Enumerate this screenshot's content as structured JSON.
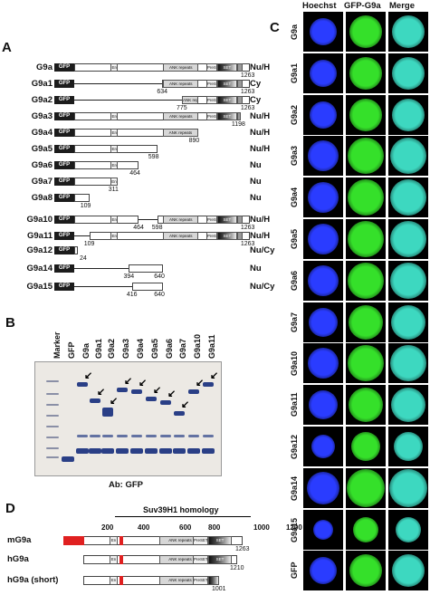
{
  "panels": {
    "a": "A",
    "b": "B",
    "c": "C",
    "d": "D"
  },
  "domain_labels": {
    "gfp": "GFP",
    "en": "En",
    "ank": "ANK repeats",
    "preset": "PreSET",
    "set": "SET"
  },
  "panel_a": {
    "rows": [
      {
        "name": "G9a",
        "loc": "Nu/H",
        "end": "1263"
      },
      {
        "name": "G9a1",
        "loc": "Cy",
        "start": "634",
        "end": "1263"
      },
      {
        "name": "G9a2",
        "loc": "Cy",
        "start": "775",
        "end": "1263"
      },
      {
        "name": "G9a3",
        "loc": "Nu/H",
        "end": "1198"
      },
      {
        "name": "G9a4",
        "loc": "Nu/H",
        "end": "890"
      },
      {
        "name": "G9a5",
        "loc": "Nu/H",
        "end": "598"
      },
      {
        "name": "G9a6",
        "loc": "Nu",
        "end": "464"
      },
      {
        "name": "G9a7",
        "loc": "Nu",
        "end": "311"
      },
      {
        "name": "G9a8",
        "loc": "Nu",
        "end": "109"
      },
      {
        "name": "G9a10",
        "loc": "Nu/H",
        "start": "464",
        "mid": "598",
        "end": "1263"
      },
      {
        "name": "G9a11",
        "loc": "Nu/H",
        "start": "109",
        "end": "1263"
      },
      {
        "name": "G9a12",
        "loc": "Nu/Cy",
        "end": "24"
      },
      {
        "name": "G9a14",
        "loc": "Nu",
        "start": "394",
        "end": "640"
      },
      {
        "name": "G9a15",
        "loc": "Nu/Cy",
        "start": "416",
        "end": "640"
      }
    ]
  },
  "panel_b": {
    "lanes": [
      "Marker",
      "GFP",
      "G9a",
      "G9a1",
      "G9a2",
      "G9a3",
      "G9a4",
      "G9a5",
      "G9a6",
      "G9a7",
      "G9a10",
      "G9a11"
    ],
    "caption": "Ab: GFP"
  },
  "panel_c": {
    "headers": [
      "Hoechst",
      "GFP-G9a",
      "Merge"
    ],
    "rows": [
      "G9a",
      "G9a1",
      "G9a2",
      "G9a3",
      "G9a4",
      "G9a5",
      "G9a6",
      "G9a7",
      "G9a10",
      "G9a11",
      "G9a12",
      "G9a14",
      "G9a15",
      "GFP"
    ],
    "colors": {
      "hoechst": "#2a3cff",
      "gfp": "#35e02a",
      "merge": "#3dd8c0"
    }
  },
  "panel_d": {
    "homology_label": "Suv39H1 homology",
    "axis": [
      "200",
      "400",
      "600",
      "800",
      "1000",
      "1200"
    ],
    "rows": [
      {
        "name": "mG9a",
        "end": "1263"
      },
      {
        "name": "hG9a",
        "end": "1210"
      },
      {
        "name": "hG9a (short)",
        "end": "1001"
      }
    ],
    "accent_color": "#e02020"
  }
}
